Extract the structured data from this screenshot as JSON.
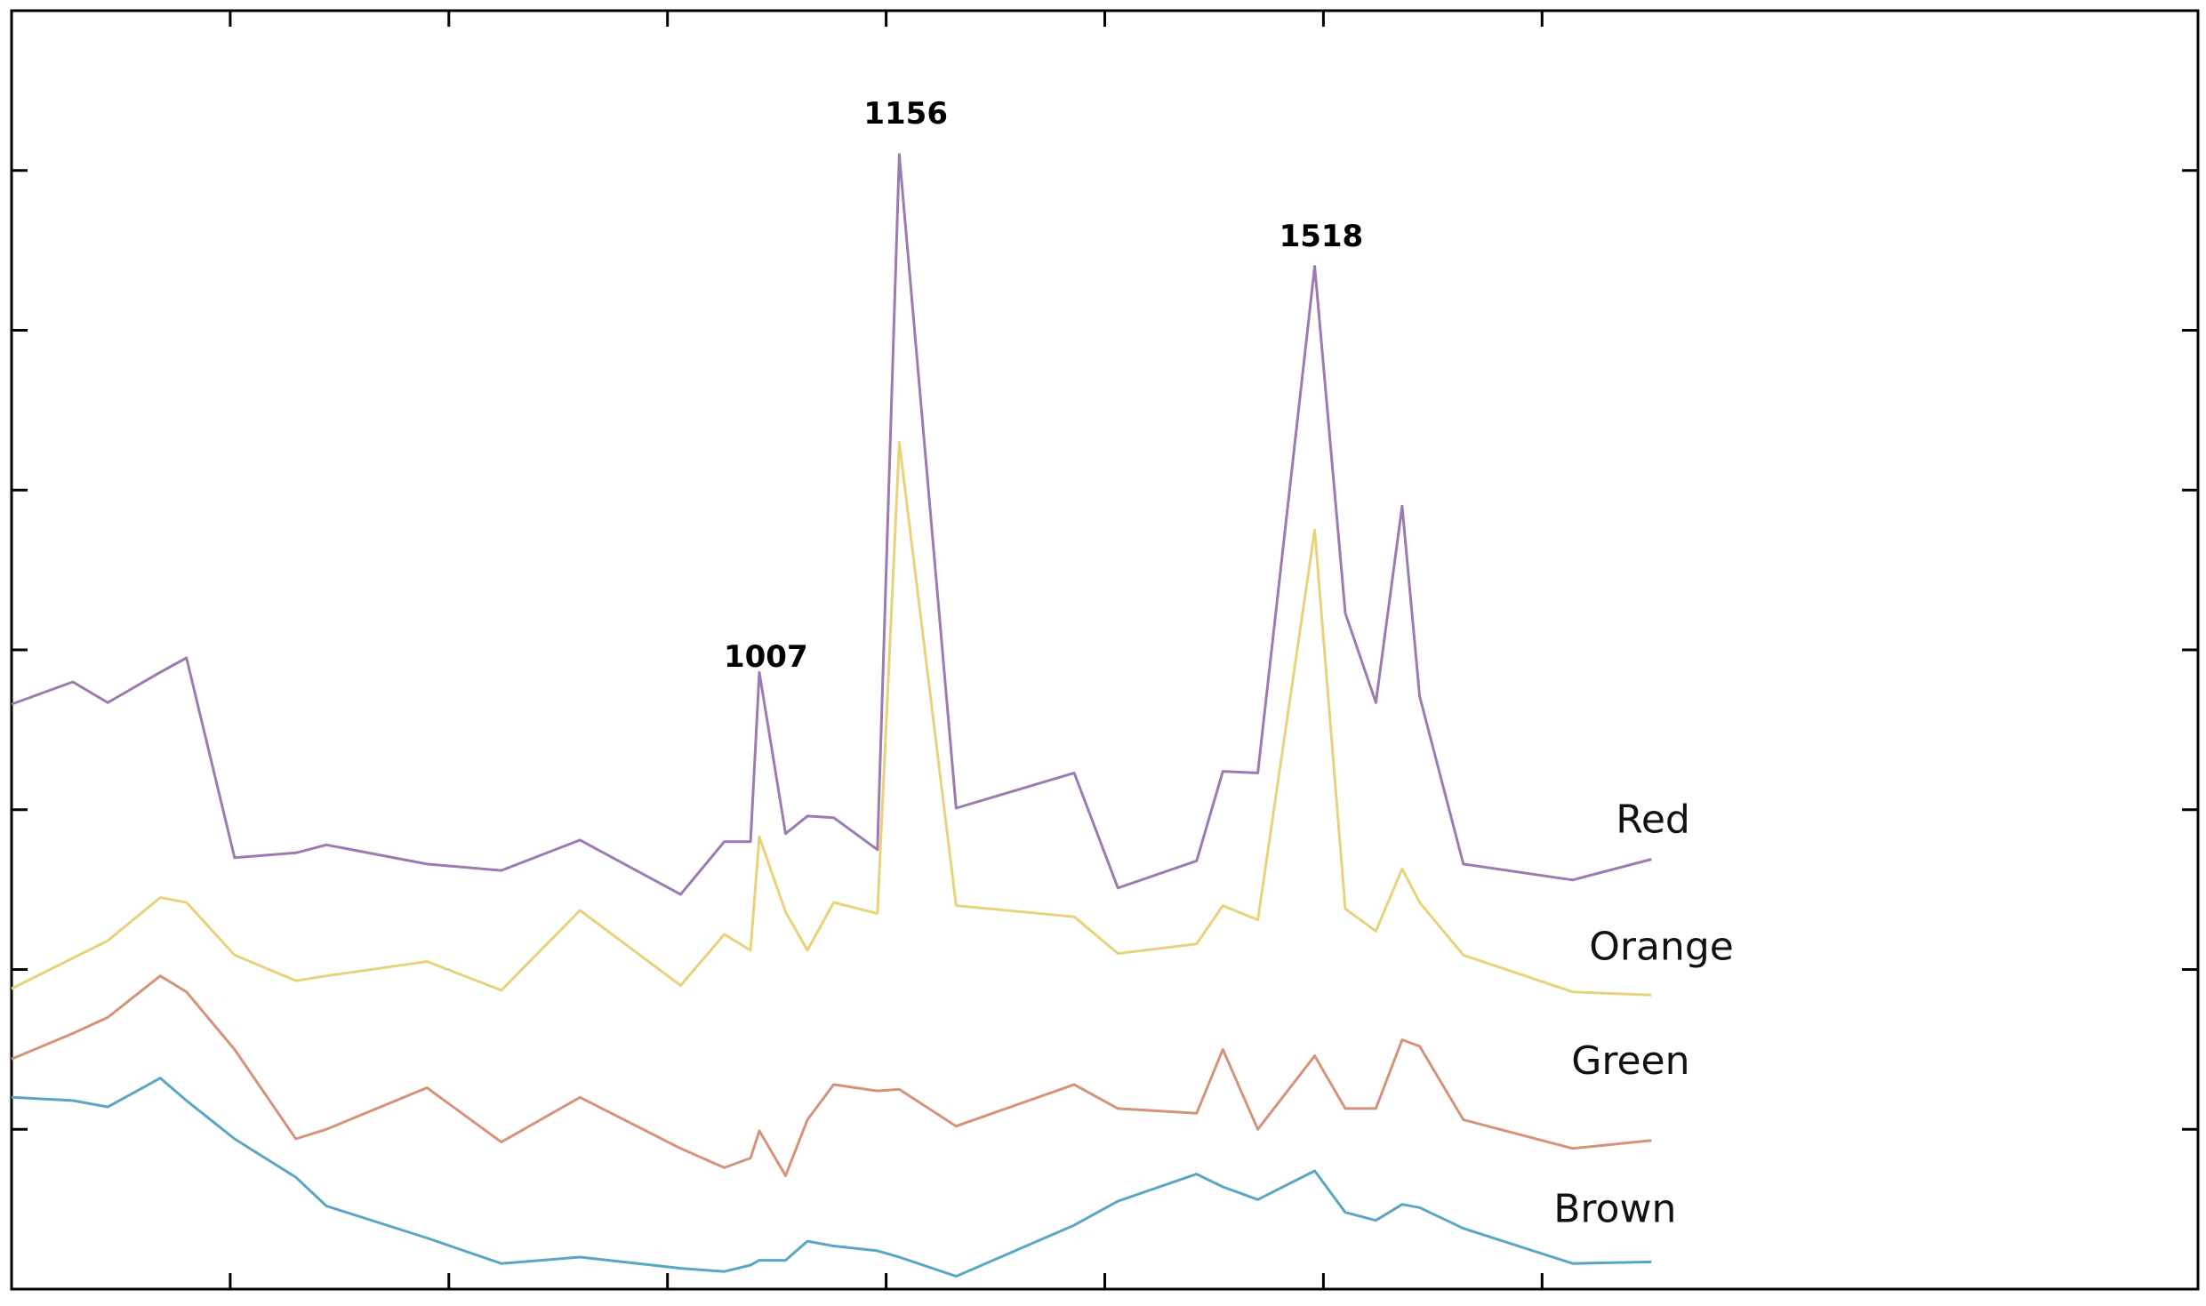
{
  "chart_data": {
    "type": "line",
    "title": "",
    "xlabel": "",
    "ylabel": "",
    "xlim": [
      0,
      50
    ],
    "ylim": [
      0,
      8
    ],
    "grid": false,
    "legend": "inline labels at right end of each series",
    "x_ticks": [
      5,
      10,
      15,
      20,
      25,
      30,
      35
    ],
    "y_ticks": [
      1,
      2,
      3,
      4,
      5,
      6,
      7
    ],
    "annotations": [
      {
        "text": "1007",
        "x": 17.1,
        "y": 3.85
      },
      {
        "text": "1156",
        "x": 20.3,
        "y": 7.25
      },
      {
        "text": "1518",
        "x": 29.8,
        "y": 6.48
      }
    ],
    "series": [
      {
        "name": "Red",
        "color": "#9b7bb0",
        "x": [
          0,
          1.4,
          2.2,
          3.4,
          4.0,
          5.1,
          6.5,
          7.2,
          9.5,
          11.2,
          13.0,
          15.3,
          16.3,
          16.9,
          17.1,
          17.7,
          18.2,
          18.8,
          19.8,
          20.3,
          21.6,
          24.3,
          25.3,
          27.1,
          27.7,
          28.5,
          29.8,
          30.5,
          31.2,
          31.8,
          32.2,
          33.2,
          35.7,
          37.5
        ],
        "y": [
          3.66,
          3.8,
          3.67,
          3.86,
          3.95,
          2.7,
          2.73,
          2.78,
          2.66,
          2.62,
          2.81,
          2.47,
          2.8,
          2.8,
          3.86,
          2.85,
          2.96,
          2.95,
          2.75,
          7.1,
          3.01,
          3.23,
          2.51,
          2.68,
          3.24,
          3.23,
          6.4,
          4.23,
          3.67,
          4.9,
          3.71,
          2.66,
          2.56,
          2.69
        ]
      },
      {
        "name": "Orange",
        "color": "#e8d27a",
        "x": [
          0,
          2.2,
          3.4,
          4.0,
          5.1,
          6.5,
          7.2,
          9.5,
          11.2,
          13.0,
          15.3,
          16.3,
          16.9,
          17.1,
          17.7,
          18.2,
          18.8,
          19.8,
          20.3,
          21.6,
          24.3,
          25.3,
          27.1,
          27.7,
          28.5,
          29.8,
          30.5,
          31.2,
          31.8,
          32.2,
          33.2,
          35.7,
          37.5
        ],
        "y": [
          1.88,
          2.18,
          2.45,
          2.42,
          2.09,
          1.93,
          1.96,
          2.05,
          1.87,
          2.37,
          1.9,
          2.22,
          2.12,
          2.83,
          2.36,
          2.12,
          2.42,
          2.35,
          5.3,
          2.4,
          2.33,
          2.1,
          2.16,
          2.4,
          2.31,
          4.75,
          2.38,
          2.24,
          2.63,
          2.42,
          2.09,
          1.86,
          1.84
        ]
      },
      {
        "name": "Green",
        "color": "#d4937a",
        "x": [
          0,
          1.4,
          2.2,
          3.4,
          4.0,
          5.1,
          6.5,
          7.2,
          9.5,
          11.2,
          13.0,
          15.3,
          16.3,
          16.9,
          17.1,
          17.7,
          18.2,
          18.8,
          19.8,
          20.3,
          21.6,
          24.3,
          25.3,
          27.1,
          27.7,
          28.5,
          29.8,
          30.5,
          31.2,
          31.8,
          32.2,
          33.2,
          35.7,
          37.5
        ],
        "y": [
          1.44,
          1.6,
          1.7,
          1.96,
          1.86,
          1.5,
          0.94,
          1.0,
          1.26,
          0.92,
          1.2,
          0.88,
          0.76,
          0.82,
          0.99,
          0.71,
          1.06,
          1.28,
          1.24,
          1.25,
          1.02,
          1.28,
          1.13,
          1.1,
          1.5,
          1.0,
          1.46,
          1.13,
          1.13,
          1.56,
          1.52,
          1.06,
          0.88,
          0.93
        ]
      },
      {
        "name": "Brown",
        "color": "#5aa6c6",
        "x": [
          0,
          1.4,
          2.2,
          3.4,
          4.0,
          5.1,
          6.5,
          7.2,
          9.5,
          11.2,
          13.0,
          15.3,
          16.3,
          16.9,
          17.1,
          17.7,
          18.2,
          18.8,
          19.8,
          20.3,
          21.6,
          24.3,
          25.3,
          27.1,
          27.7,
          28.5,
          29.8,
          30.5,
          31.2,
          31.8,
          32.2,
          33.2,
          35.7,
          37.5
        ],
        "y": [
          1.2,
          1.18,
          1.14,
          1.32,
          1.18,
          0.94,
          0.7,
          0.52,
          0.32,
          0.16,
          0.2,
          0.13,
          0.11,
          0.15,
          0.18,
          0.18,
          0.3,
          0.27,
          0.24,
          0.2,
          0.08,
          0.4,
          0.55,
          0.72,
          0.64,
          0.56,
          0.74,
          0.48,
          0.43,
          0.53,
          0.51,
          0.38,
          0.16,
          0.17
        ]
      }
    ]
  }
}
